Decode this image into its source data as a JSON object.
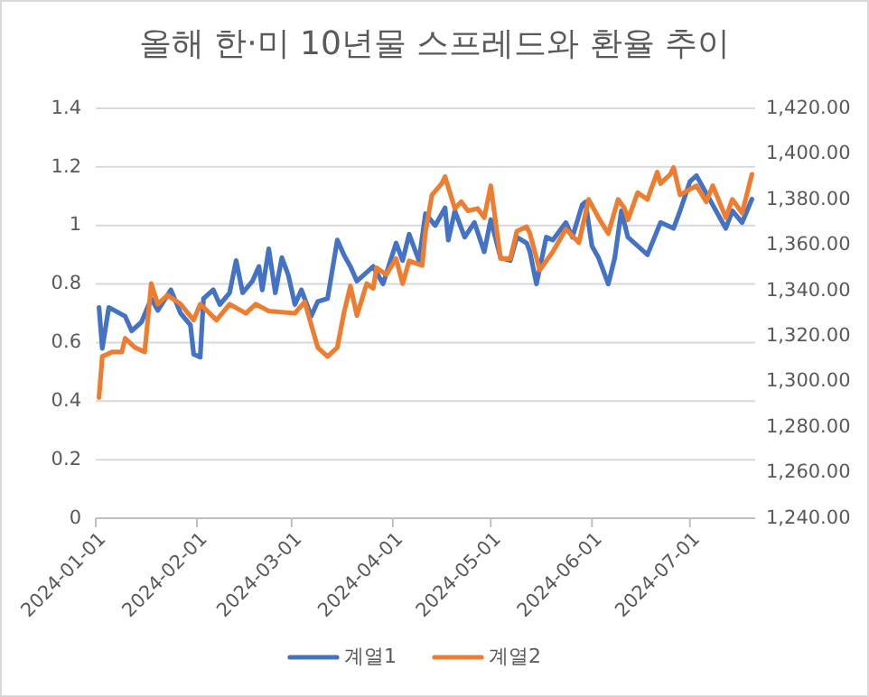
{
  "chart_data": {
    "type": "line",
    "title": "올해 한·미 10년물 스프레드와 환율 추이",
    "xlim": [
      "2024-01-01",
      "2024-07-21"
    ],
    "xticks": [
      "2024-01-01",
      "2024-02-01",
      "2024-03-01",
      "2024-04-01",
      "2024-05-01",
      "2024-06-01",
      "2024-07-01"
    ],
    "ylim": [
      0,
      1.4
    ],
    "yticks": [
      0,
      0.2,
      0.4,
      0.6,
      0.8,
      1,
      1.2,
      1.4
    ],
    "y2lim": [
      1240,
      1420
    ],
    "y2ticks": [
      {
        "value": 1240,
        "label": "1,240.00"
      },
      {
        "value": 1260,
        "label": "1,260.00"
      },
      {
        "value": 1280,
        "label": "1,280.00"
      },
      {
        "value": 1300,
        "label": "1,300.00"
      },
      {
        "value": 1320,
        "label": "1,320.00"
      },
      {
        "value": 1340,
        "label": "1,340.00"
      },
      {
        "value": 1360,
        "label": "1,360.00"
      },
      {
        "value": 1380,
        "label": "1,380.00"
      },
      {
        "value": 1400,
        "label": "1,400.00"
      },
      {
        "value": 1420,
        "label": "1,420.00"
      }
    ],
    "grid": "y",
    "legend": "bottom",
    "marker": "none",
    "line_style": "solid",
    "series": [
      {
        "name": "계열1",
        "color": "#4472c4",
        "x": [
          "2024-01-02",
          "2024-01-03",
          "2024-01-05",
          "2024-01-10",
          "2024-01-12",
          "2024-01-15",
          "2024-01-18",
          "2024-01-20",
          "2024-01-24",
          "2024-01-27",
          "2024-01-30",
          "2024-01-31",
          "2024-02-02",
          "2024-02-03",
          "2024-02-06",
          "2024-02-08",
          "2024-02-11",
          "2024-02-13",
          "2024-02-15",
          "2024-02-18",
          "2024-02-20",
          "2024-02-21",
          "2024-02-23",
          "2024-02-25",
          "2024-02-27",
          "2024-02-29",
          "2024-03-02",
          "2024-03-04",
          "2024-03-07",
          "2024-03-09",
          "2024-03-12",
          "2024-03-15",
          "2024-03-17",
          "2024-03-19",
          "2024-03-21",
          "2024-03-26",
          "2024-03-29",
          "2024-04-02",
          "2024-04-04",
          "2024-04-06",
          "2024-04-09",
          "2024-04-11",
          "2024-04-14",
          "2024-04-17",
          "2024-04-18",
          "2024-04-20",
          "2024-04-23",
          "2024-04-26",
          "2024-04-29",
          "2024-05-01",
          "2024-05-04",
          "2024-05-07",
          "2024-05-09",
          "2024-05-12",
          "2024-05-13",
          "2024-05-15",
          "2024-05-18",
          "2024-05-20",
          "2024-05-24",
          "2024-05-26",
          "2024-05-29",
          "2024-05-30",
          "2024-06-01",
          "2024-06-03",
          "2024-06-06",
          "2024-06-08",
          "2024-06-10",
          "2024-06-12",
          "2024-06-18",
          "2024-06-22",
          "2024-06-26",
          "2024-06-28",
          "2024-07-01",
          "2024-07-03",
          "2024-07-06",
          "2024-07-08",
          "2024-07-12",
          "2024-07-14",
          "2024-07-17",
          "2024-07-20"
        ],
        "values": [
          0.72,
          0.58,
          0.72,
          0.69,
          0.64,
          0.67,
          0.75,
          0.71,
          0.78,
          0.7,
          0.66,
          0.56,
          0.55,
          0.75,
          0.78,
          0.73,
          0.77,
          0.88,
          0.77,
          0.81,
          0.86,
          0.78,
          0.92,
          0.77,
          0.89,
          0.83,
          0.73,
          0.78,
          0.69,
          0.74,
          0.75,
          0.95,
          0.9,
          0.86,
          0.81,
          0.86,
          0.8,
          0.94,
          0.88,
          0.97,
          0.88,
          1.04,
          1.0,
          1.06,
          0.95,
          1.05,
          0.96,
          1.01,
          0.91,
          1.02,
          0.89,
          0.88,
          0.96,
          0.94,
          0.91,
          0.8,
          0.96,
          0.95,
          1.01,
          0.96,
          1.07,
          1.08,
          0.93,
          0.89,
          0.8,
          0.89,
          1.05,
          0.96,
          0.9,
          1.01,
          0.99,
          1.05,
          1.15,
          1.17,
          1.11,
          1.07,
          0.99,
          1.05,
          1.01,
          1.09
        ]
      },
      {
        "name": "계열2",
        "color": "#ed7d31",
        "axis": "y2",
        "x": [
          "2024-01-02",
          "2024-01-03",
          "2024-01-06",
          "2024-01-09",
          "2024-01-10",
          "2024-01-13",
          "2024-01-16",
          "2024-01-18",
          "2024-01-20",
          "2024-01-23",
          "2024-01-27",
          "2024-01-31",
          "2024-02-02",
          "2024-02-07",
          "2024-02-11",
          "2024-02-16",
          "2024-02-19",
          "2024-02-23",
          "2024-03-02",
          "2024-03-05",
          "2024-03-07",
          "2024-03-09",
          "2024-03-12",
          "2024-03-15",
          "2024-03-17",
          "2024-03-19",
          "2024-03-21",
          "2024-03-24",
          "2024-03-26",
          "2024-03-27",
          "2024-03-30",
          "2024-04-02",
          "2024-04-04",
          "2024-04-06",
          "2024-04-10",
          "2024-04-11",
          "2024-04-13",
          "2024-04-16",
          "2024-04-17",
          "2024-04-20",
          "2024-04-22",
          "2024-04-24",
          "2024-04-27",
          "2024-04-29",
          "2024-05-01",
          "2024-05-04",
          "2024-05-07",
          "2024-05-09",
          "2024-05-12",
          "2024-05-13",
          "2024-05-16",
          "2024-05-20",
          "2024-05-24",
          "2024-05-28",
          "2024-05-31",
          "2024-06-03",
          "2024-06-06",
          "2024-06-09",
          "2024-06-11",
          "2024-06-12",
          "2024-06-15",
          "2024-06-18",
          "2024-06-21",
          "2024-06-22",
          "2024-06-25",
          "2024-06-26",
          "2024-06-28",
          "2024-07-03",
          "2024-07-06",
          "2024-07-08",
          "2024-07-12",
          "2024-07-14",
          "2024-07-17",
          "2024-07-20"
        ],
        "values": [
          1293,
          1311,
          1313,
          1313,
          1319,
          1315,
          1313,
          1343,
          1334,
          1338,
          1334,
          1327,
          1334,
          1327,
          1334,
          1330,
          1334,
          1331,
          1330,
          1335,
          1325,
          1315,
          1311,
          1315,
          1330,
          1342,
          1329,
          1343,
          1341,
          1350,
          1347,
          1354,
          1343,
          1353,
          1351,
          1366,
          1382,
          1387,
          1390,
          1376,
          1379,
          1375,
          1376,
          1372,
          1386,
          1354,
          1354,
          1366,
          1368,
          1365,
          1349,
          1357,
          1367,
          1361,
          1380,
          1372,
          1365,
          1380,
          1376,
          1371,
          1383,
          1380,
          1392,
          1387,
          1391,
          1394,
          1382,
          1386,
          1379,
          1386,
          1372,
          1380,
          1374,
          1391
        ]
      }
    ]
  }
}
